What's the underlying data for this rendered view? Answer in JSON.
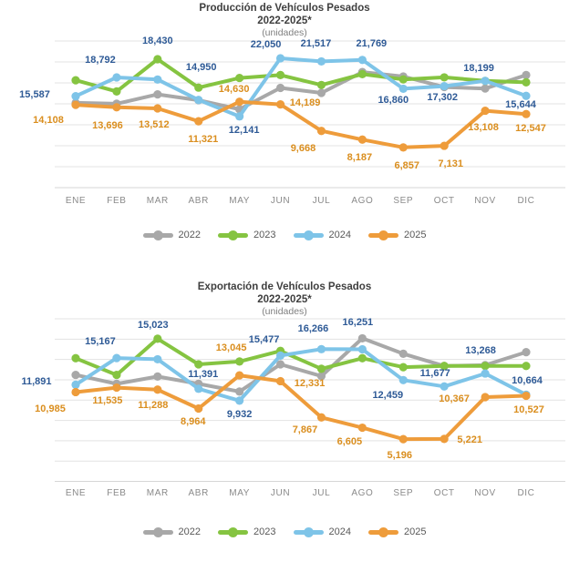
{
  "chart_data": [
    {
      "type": "line",
      "title": "Producción de Vehículos Pesados",
      "subtitle": "2022-2025*",
      "units_note": "(unidades)",
      "categories": [
        "ENE",
        "FEB",
        "MAR",
        "ABR",
        "MAY",
        "JUN",
        "JUL",
        "AGO",
        "SEP",
        "OCT",
        "NOV",
        "DIC"
      ],
      "series": [
        {
          "name": "2022",
          "color": "#A8A8A8",
          "data_labels": false,
          "values_estimated_from_pixels": true,
          "values": [
            14450,
            14300,
            15900,
            14900,
            13350,
            17000,
            16150,
            19700,
            18950,
            17150,
            16900,
            19200
          ]
        },
        {
          "name": "2023",
          "color": "#85C441",
          "data_labels": false,
          "values_estimated_from_pixels": true,
          "values": [
            18300,
            16400,
            21900,
            17050,
            18700,
            19200,
            17500,
            19350,
            18450,
            18800,
            18200,
            17950
          ]
        },
        {
          "name": "2024",
          "color": "#7EC4E8",
          "data_labels": true,
          "label_color": "#2E5A96",
          "values": [
            15587,
            18792,
            18430,
            14950,
            12141,
            22050,
            21517,
            21769,
            16860,
            17302,
            18199,
            15644
          ]
        },
        {
          "name": "2025",
          "color": "#EE9C3B",
          "data_labels": true,
          "label_color": "#DA8E1E",
          "values": [
            14108,
            13696,
            13512,
            11321,
            14630,
            14189,
            9668,
            8187,
            6857,
            7131,
            13108,
            12547
          ]
        }
      ],
      "ylim": [
        0,
        25000
      ],
      "grid": true,
      "legend_position": "bottom",
      "legend": [
        "2022",
        "2023",
        "2024",
        "2025"
      ]
    },
    {
      "type": "line",
      "title": "Exportación de Vehículos Pesados",
      "subtitle": "2022-2025*",
      "units_note": "(unidades)",
      "categories": [
        "ENE",
        "FEB",
        "MAR",
        "ABR",
        "MAY",
        "JUN",
        "JUL",
        "AGO",
        "SEP",
        "OCT",
        "NOV",
        "DIC"
      ],
      "series": [
        {
          "name": "2022",
          "color": "#A8A8A8",
          "data_labels": false,
          "values_estimated_from_pixels": true,
          "values": [
            13100,
            12000,
            12900,
            12000,
            11050,
            14400,
            12950,
            17600,
            15700,
            14200,
            14300,
            15900
          ]
        },
        {
          "name": "2023",
          "color": "#85C441",
          "data_labels": false,
          "values_estimated_from_pixels": true,
          "values": [
            15150,
            13100,
            17550,
            14400,
            14750,
            16050,
            13850,
            15150,
            14050,
            14200,
            14200,
            14200
          ]
        },
        {
          "name": "2024",
          "color": "#7EC4E8",
          "data_labels": true,
          "label_color": "#2E5A96",
          "values": [
            11891,
            15167,
            15023,
            11391,
            9932,
            15477,
            16266,
            16251,
            12459,
            11677,
            13268,
            10664
          ]
        },
        {
          "name": "2025",
          "color": "#EE9C3B",
          "data_labels": true,
          "label_color": "#DA8E1E",
          "values": [
            10985,
            11535,
            11288,
            8964,
            13045,
            12331,
            7867,
            6605,
            5196,
            5221,
            10367,
            10527
          ]
        }
      ],
      "ylim": [
        0,
        20000
      ],
      "grid": true,
      "legend_position": "bottom",
      "legend": [
        "2022",
        "2023",
        "2024",
        "2025"
      ]
    }
  ]
}
